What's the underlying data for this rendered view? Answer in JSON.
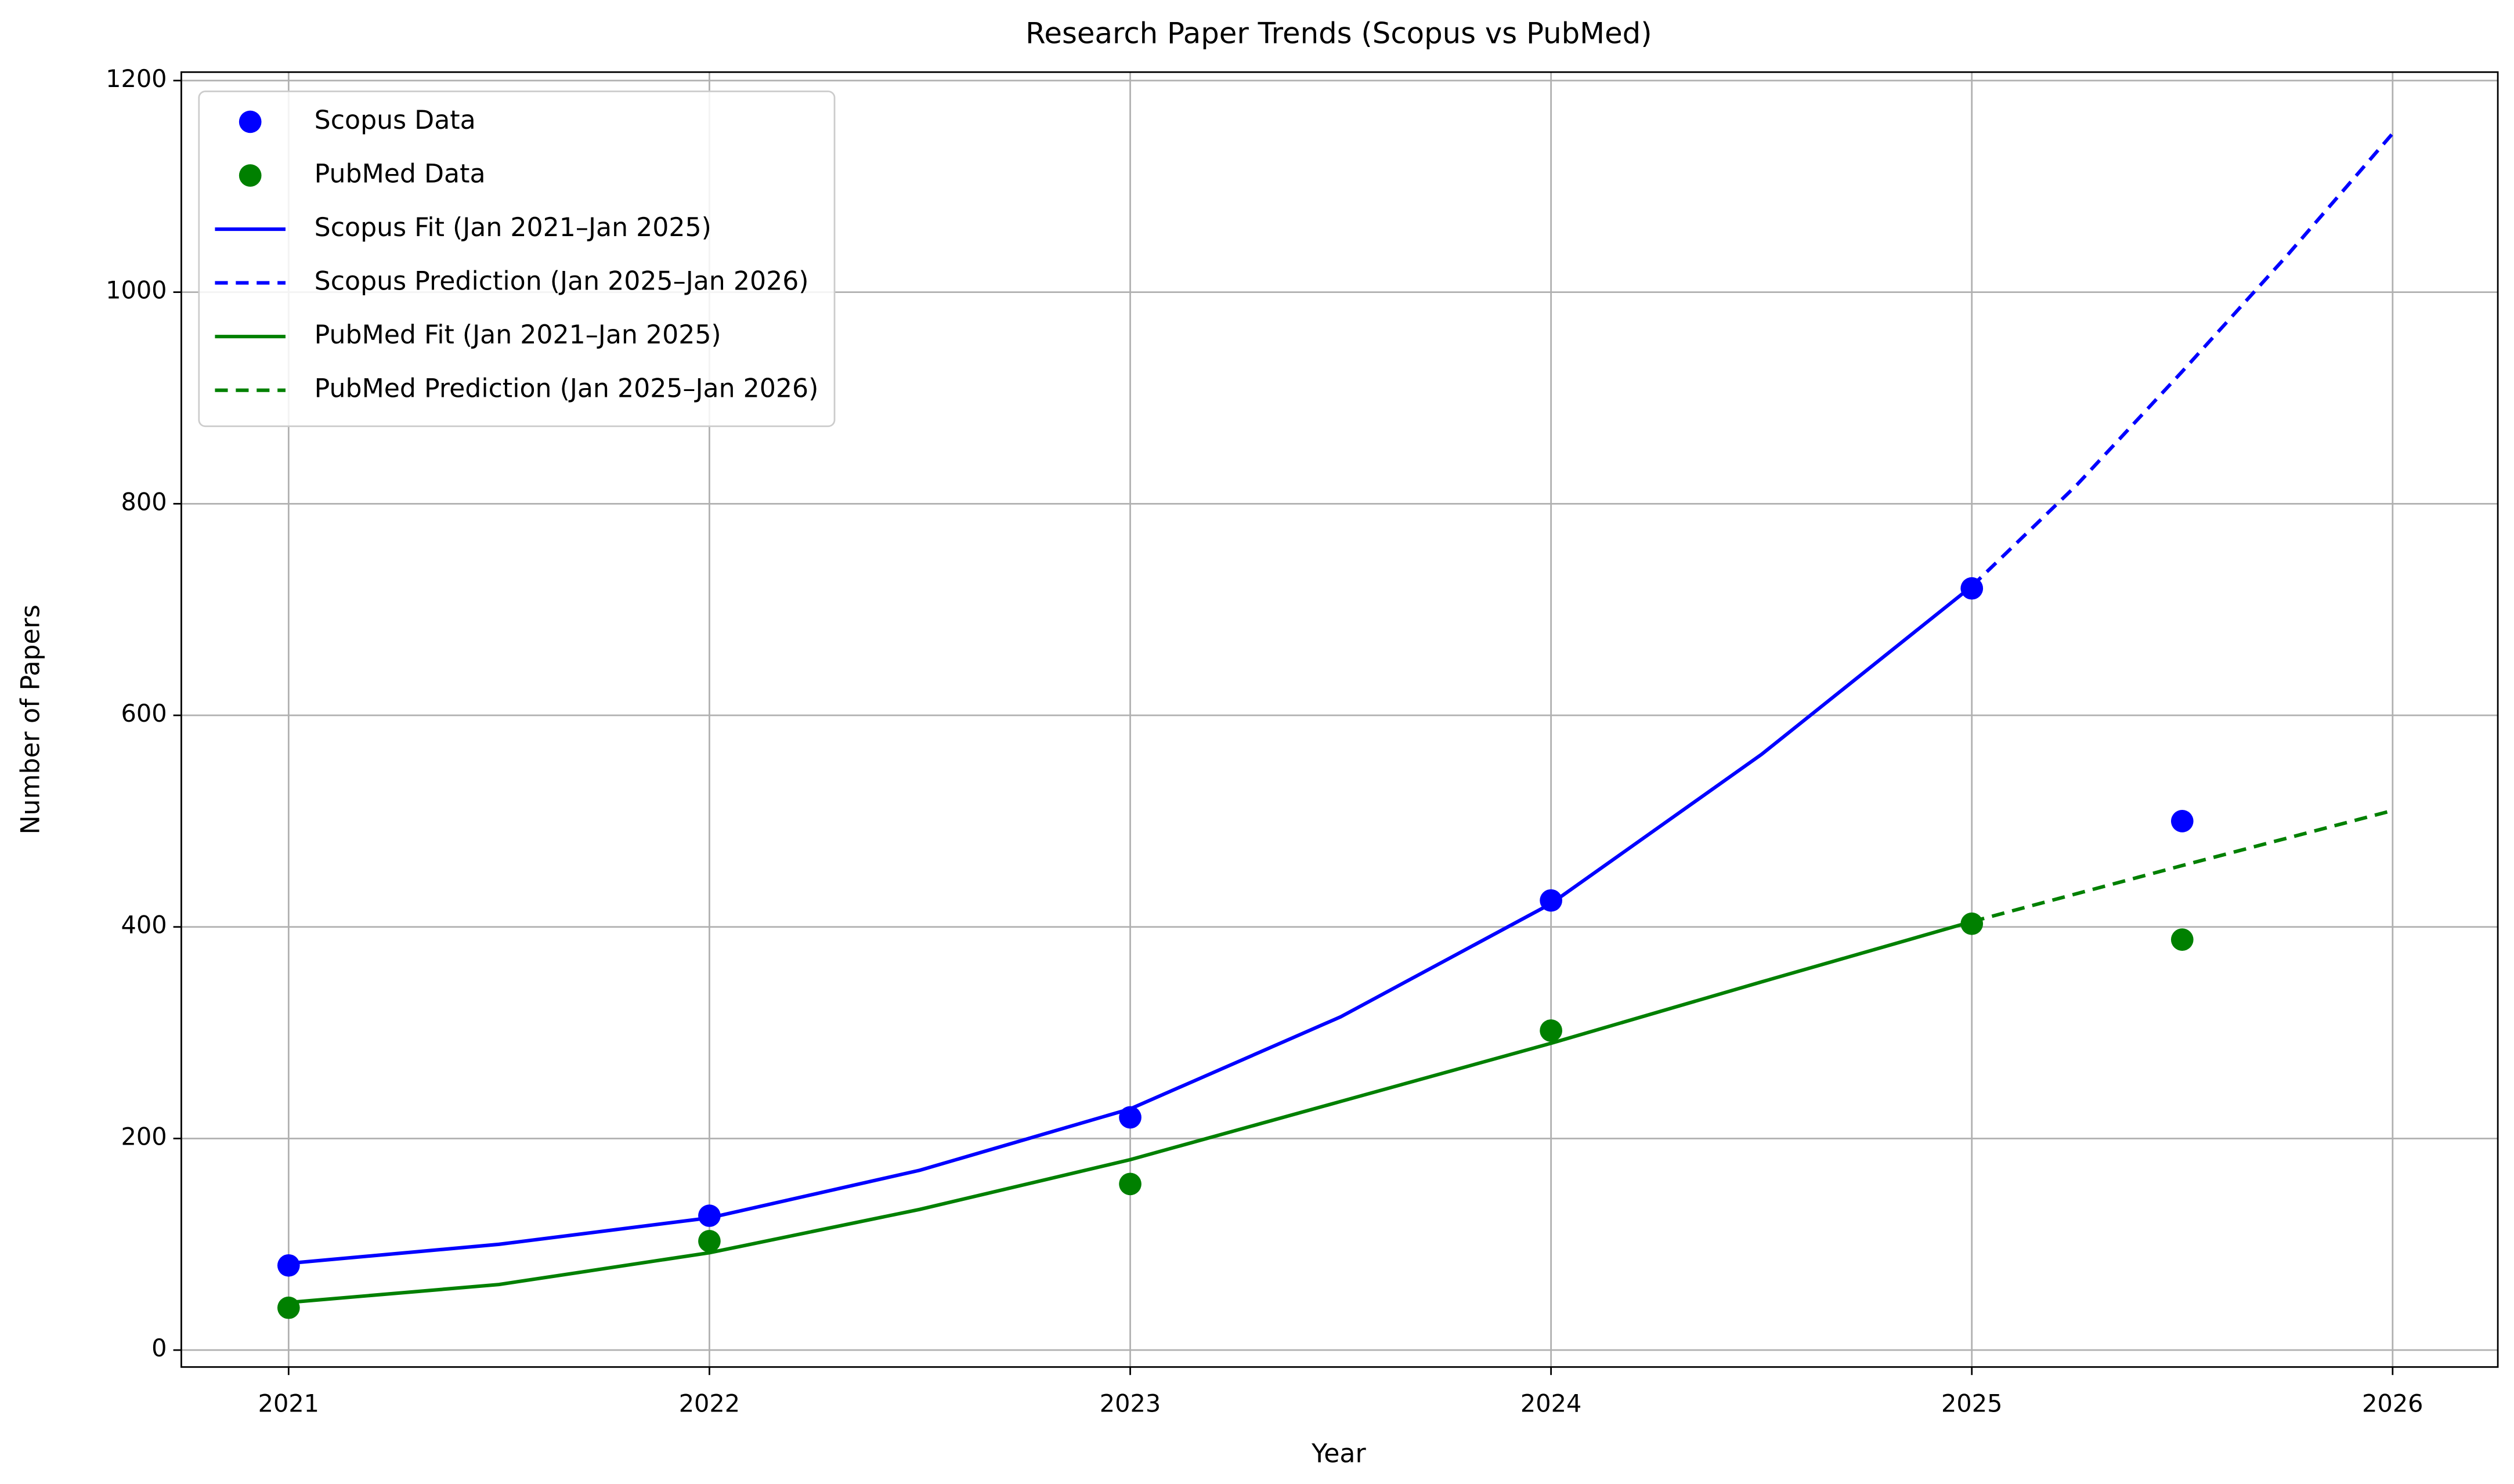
{
  "chart_data": {
    "type": "scatter-line",
    "title": "Research Paper Trends (Scopus vs PubMed)",
    "x_label": "Year",
    "y_label": "Number of Papers",
    "xlim": [
      2020.745,
      2026.25
    ],
    "ylim": [
      -16,
      1208
    ],
    "xticks": [
      2021,
      2022,
      2023,
      2024,
      2025,
      2026
    ],
    "yticks": [
      0,
      200,
      400,
      600,
      800,
      1000,
      1200
    ],
    "grid": true,
    "legend": "upper left",
    "series": [
      {
        "name": "Scopus Data",
        "kind": "scatter",
        "color": "#0000ff",
        "x": [
          2021,
          2022,
          2023,
          2024,
          2025,
          2025.5
        ],
        "values": [
          80,
          127,
          220,
          425,
          720,
          500
        ]
      },
      {
        "name": "PubMed Data",
        "kind": "scatter",
        "color": "#008000",
        "x": [
          2021,
          2022,
          2023,
          2024,
          2025,
          2025.5
        ],
        "values": [
          40,
          103,
          157,
          302,
          403,
          388
        ]
      },
      {
        "name": "Scopus Fit (Jan 2021–Jan 2025)",
        "kind": "line",
        "dashed": false,
        "color": "#0000ff",
        "x": [
          2021,
          2021.5,
          2022,
          2022.5,
          2023,
          2023.5,
          2024,
          2024.5,
          2025
        ],
        "values": [
          82,
          100,
          125,
          170,
          228,
          315,
          422,
          563,
          722
        ]
      },
      {
        "name": "Scopus Prediction (Jan 2025–Jan 2026)",
        "kind": "line",
        "dashed": true,
        "color": "#0000ff",
        "x": [
          2025,
          2025.25,
          2025.5,
          2025.75,
          2026
        ],
        "values": [
          722,
          818,
          925,
          1035,
          1150
        ]
      },
      {
        "name": "PubMed Fit (Jan 2021–Jan 2025)",
        "kind": "line",
        "dashed": false,
        "color": "#008000",
        "x": [
          2021,
          2021.5,
          2022,
          2022.5,
          2023,
          2023.5,
          2024,
          2024.5,
          2025
        ],
        "values": [
          45,
          62,
          92,
          133,
          180,
          235,
          290,
          348,
          405
        ]
      },
      {
        "name": "PubMed Prediction (Jan 2025–Jan 2026)",
        "kind": "line",
        "dashed": true,
        "color": "#008000",
        "x": [
          2025,
          2025.5,
          2026
        ],
        "values": [
          405,
          458,
          510
        ]
      }
    ]
  }
}
